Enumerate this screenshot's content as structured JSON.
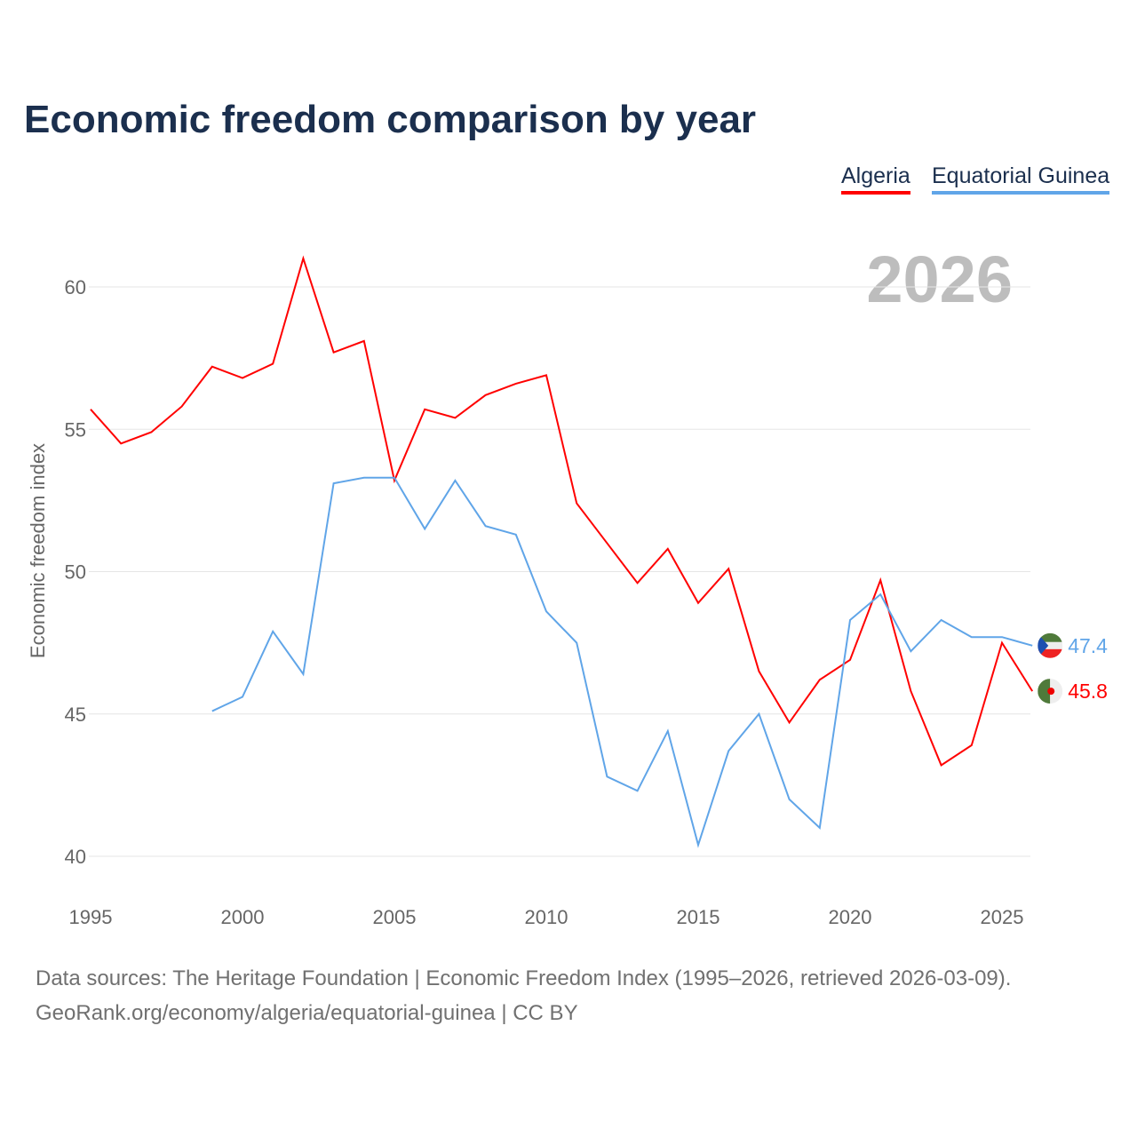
{
  "title": "Economic freedom comparison by year",
  "year_label": "2026",
  "footer": {
    "line1": "Data sources: The Heritage Foundation | Economic Freedom Index (1995–2026, retrieved 2026-03-09).",
    "line2": "GeoRank.org/economy/algeria/equatorial-guinea | CC BY"
  },
  "chart_data": {
    "type": "line",
    "title": "Economic freedom comparison by year",
    "xlabel": "",
    "ylabel": "Economic freedom index",
    "xlim": [
      1995,
      2026
    ],
    "ylim": [
      40,
      62
    ],
    "xticks": [
      1995,
      2000,
      2005,
      2010,
      2015,
      2020,
      2025
    ],
    "yticks": [
      40,
      45,
      50,
      55,
      60
    ],
    "grid": true,
    "legend_position": "top-right",
    "series": [
      {
        "name": "Algeria",
        "color": "#ff0000",
        "flag": "algeria-flag",
        "end_label": "45.8",
        "x": [
          1995,
          1996,
          1997,
          1998,
          1999,
          2000,
          2001,
          2002,
          2003,
          2004,
          2005,
          2006,
          2007,
          2008,
          2009,
          2010,
          2011,
          2012,
          2013,
          2014,
          2015,
          2016,
          2017,
          2018,
          2019,
          2020,
          2021,
          2022,
          2023,
          2024,
          2025,
          2026
        ],
        "values": [
          55.7,
          54.5,
          54.9,
          55.8,
          57.2,
          56.8,
          57.3,
          61.0,
          57.7,
          58.1,
          53.2,
          55.7,
          55.4,
          56.2,
          56.6,
          56.9,
          52.4,
          51.0,
          49.6,
          50.8,
          48.9,
          50.1,
          46.5,
          44.7,
          46.2,
          46.9,
          49.7,
          45.8,
          43.2,
          43.9,
          47.5,
          45.8
        ]
      },
      {
        "name": "Equatorial Guinea",
        "color": "#60a5e8",
        "flag": "equatorial-guinea-flag",
        "end_label": "47.4",
        "x": [
          1999,
          2000,
          2001,
          2002,
          2003,
          2004,
          2005,
          2006,
          2007,
          2008,
          2009,
          2010,
          2011,
          2012,
          2013,
          2014,
          2015,
          2016,
          2017,
          2018,
          2019,
          2020,
          2021,
          2022,
          2023,
          2024,
          2025,
          2026
        ],
        "values": [
          45.1,
          45.6,
          47.9,
          46.4,
          53.1,
          53.3,
          53.3,
          51.5,
          53.2,
          51.6,
          51.3,
          48.6,
          47.5,
          42.8,
          42.3,
          44.4,
          40.4,
          43.7,
          45.0,
          42.0,
          41.0,
          48.3,
          49.2,
          47.2,
          48.3,
          47.7,
          47.7,
          47.4
        ]
      }
    ]
  }
}
